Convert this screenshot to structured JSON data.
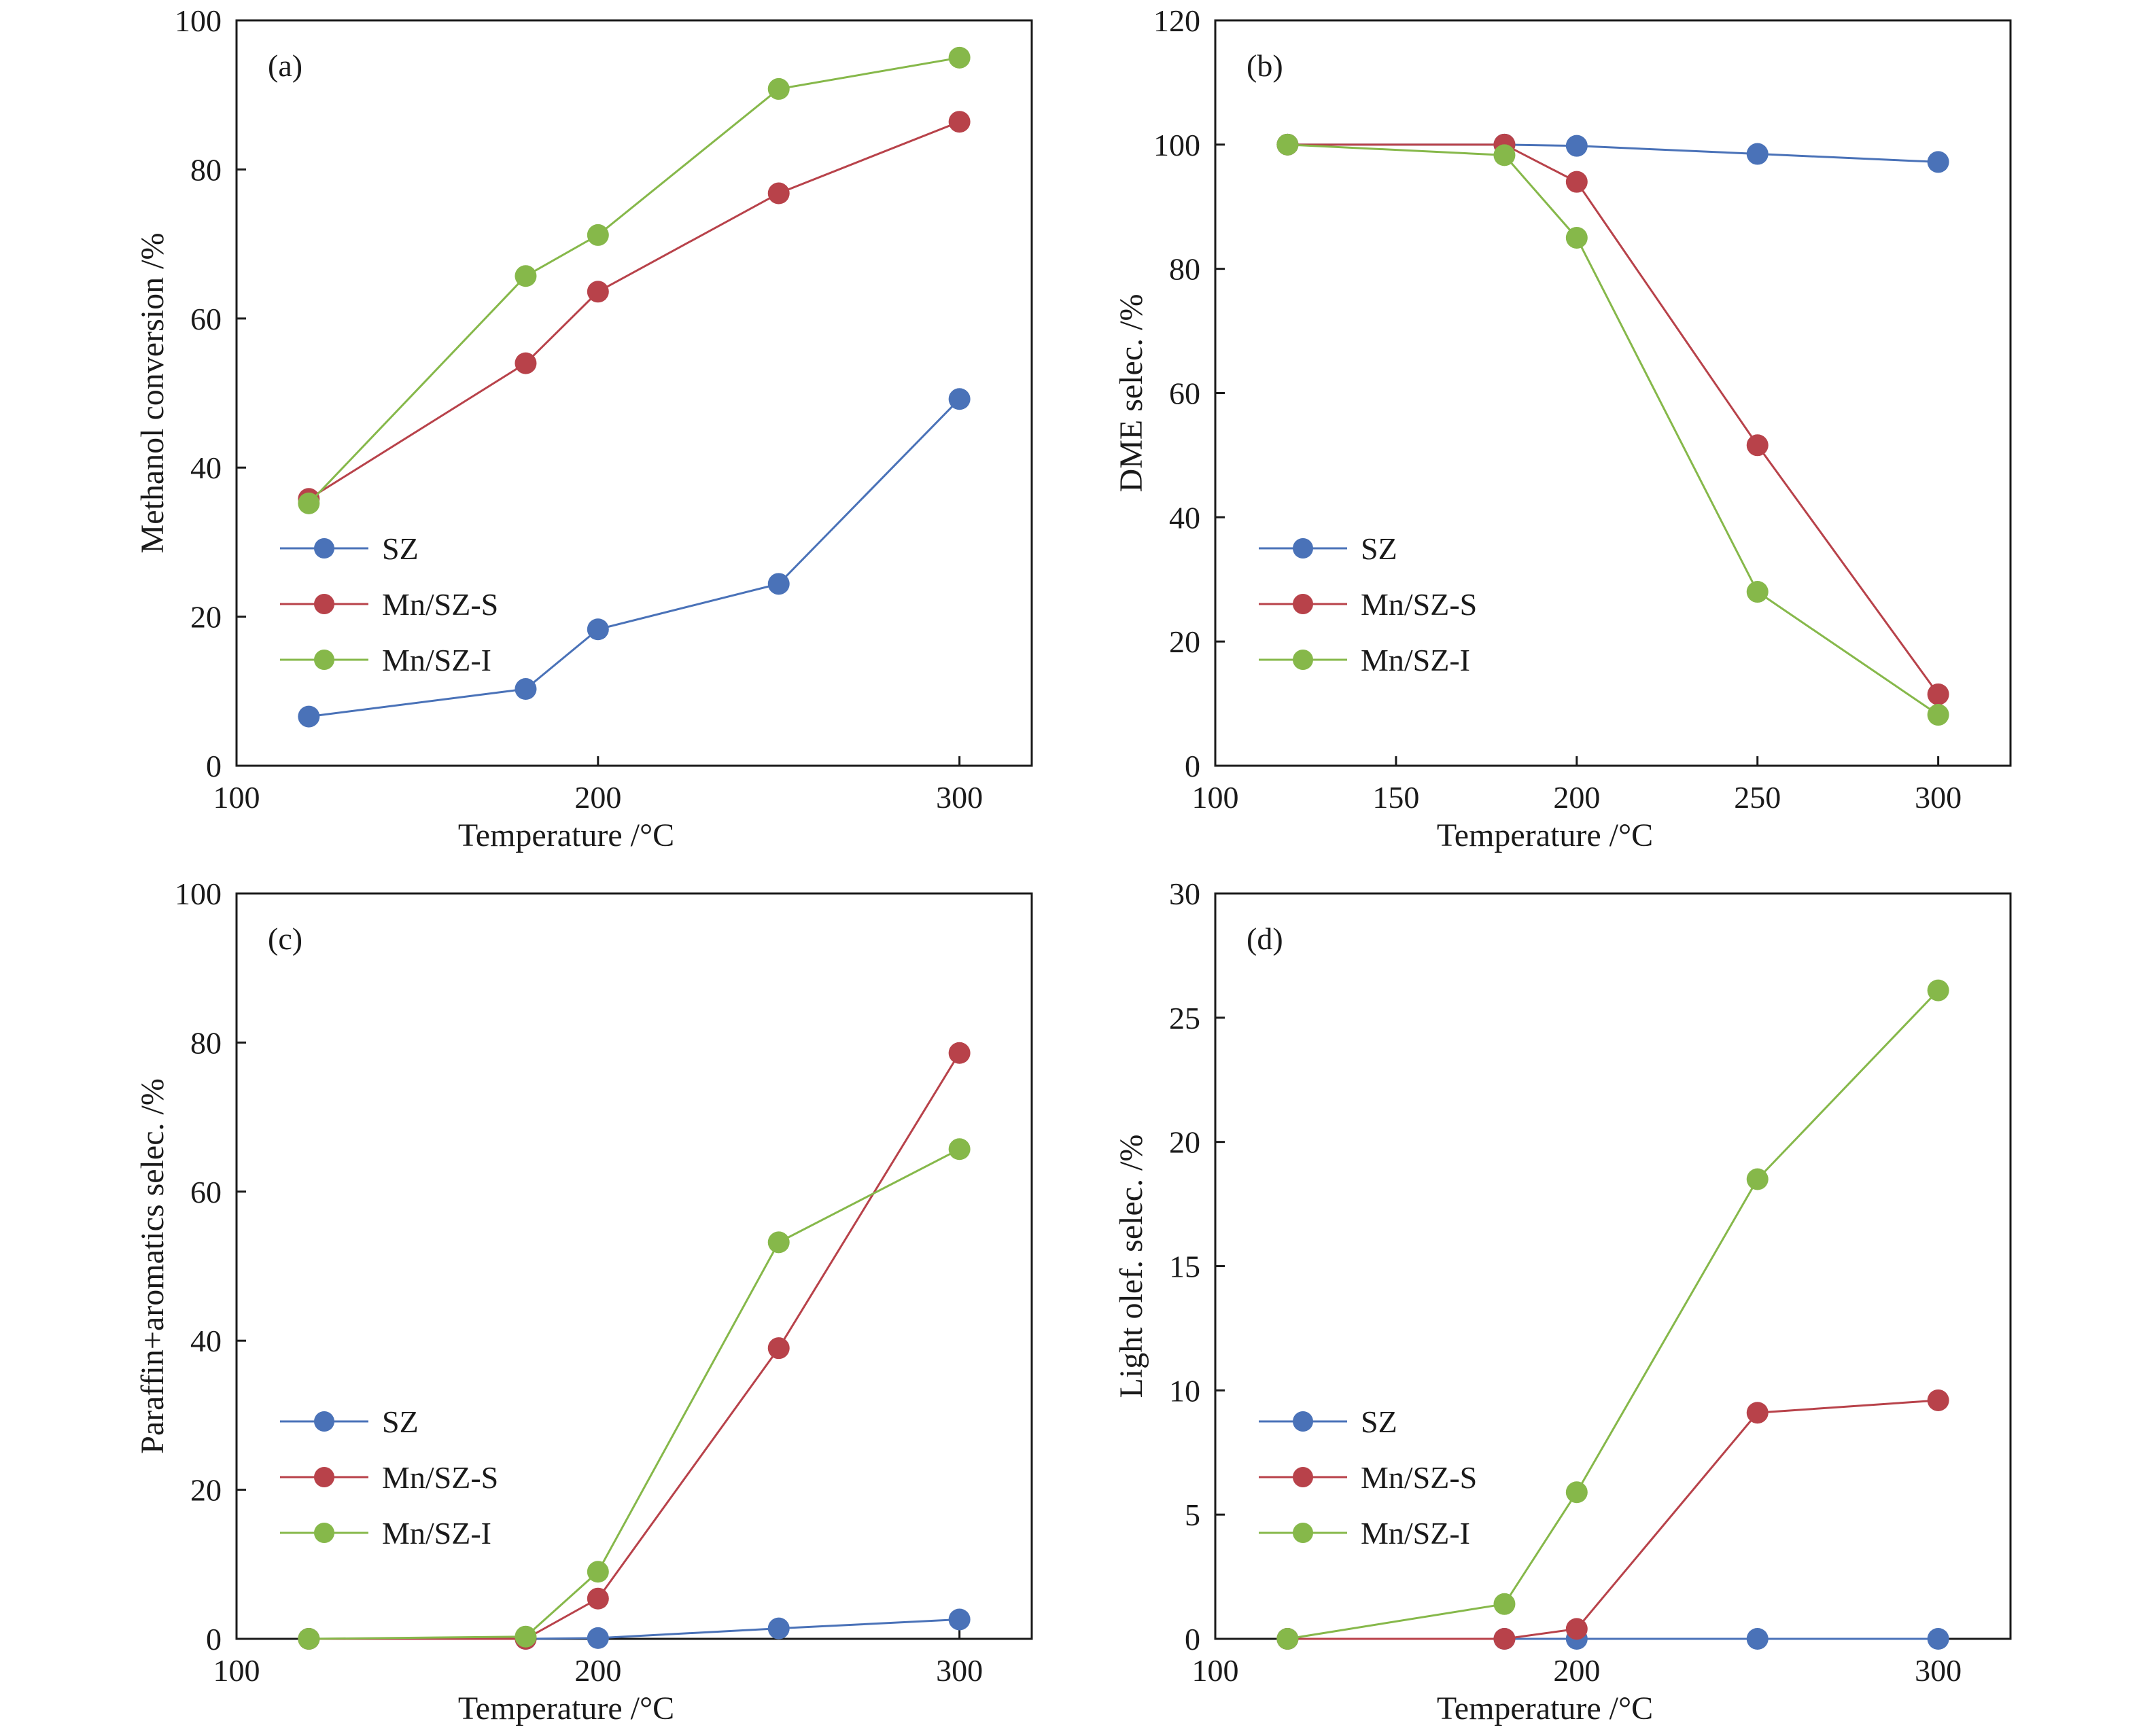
{
  "colors": {
    "SZ": "#4a72b8",
    "Mn/SZ-S": "#b8424a",
    "Mn/SZ-I": "#86b84a"
  },
  "chart_data": [
    {
      "type": "line",
      "panel_label": "(a)",
      "xlabel": "Temperature /°C",
      "ylabel": "Methanol conversion /%",
      "xlim": [
        100,
        320
      ],
      "ylim": [
        0,
        100
      ],
      "xticks": [
        100,
        200,
        300
      ],
      "yticks": [
        0,
        20,
        40,
        60,
        80,
        100
      ],
      "legend": {
        "position": "lower-left"
      },
      "series": [
        {
          "name": "SZ",
          "x": [
            120,
            180,
            200,
            250,
            300
          ],
          "values": [
            6.6,
            10.3,
            18.3,
            24.4,
            49.2
          ]
        },
        {
          "name": "Mn/SZ-S",
          "x": [
            120,
            180,
            200,
            250,
            300
          ],
          "values": [
            35.8,
            54.0,
            63.6,
            76.8,
            86.4
          ]
        },
        {
          "name": "Mn/SZ-I",
          "x": [
            120,
            180,
            200,
            250,
            300
          ],
          "values": [
            35.2,
            65.7,
            71.2,
            90.8,
            95.0
          ]
        }
      ]
    },
    {
      "type": "line",
      "panel_label": "(b)",
      "xlabel": "Temperature /°C",
      "ylabel": "DME selec. /%",
      "xlim": [
        100,
        320
      ],
      "ylim": [
        0,
        120
      ],
      "xticks": [
        100,
        150,
        200,
        250,
        300
      ],
      "yticks": [
        0,
        20,
        40,
        60,
        80,
        100,
        120
      ],
      "legend": {
        "position": "lower-left"
      },
      "series": [
        {
          "name": "SZ",
          "x": [
            120,
            180,
            200,
            250,
            300
          ],
          "values": [
            100.0,
            100.0,
            99.8,
            98.5,
            97.2
          ]
        },
        {
          "name": "Mn/SZ-S",
          "x": [
            120,
            180,
            200,
            250,
            300
          ],
          "values": [
            100.0,
            100.0,
            94.0,
            51.6,
            11.5
          ]
        },
        {
          "name": "Mn/SZ-I",
          "x": [
            120,
            180,
            200,
            250,
            300
          ],
          "values": [
            100.0,
            98.3,
            85.0,
            28.0,
            8.2
          ]
        }
      ]
    },
    {
      "type": "line",
      "panel_label": "(c)",
      "xlabel": "Temperature /°C",
      "ylabel": "Paraffin+aromatics selec. /%",
      "xlim": [
        100,
        320
      ],
      "ylim": [
        0,
        100
      ],
      "xticks": [
        100,
        200,
        300
      ],
      "yticks": [
        0,
        20,
        40,
        60,
        80,
        100
      ],
      "legend": {
        "position": "lower-left"
      },
      "series": [
        {
          "name": "SZ",
          "x": [
            120,
            180,
            200,
            250,
            300
          ],
          "values": [
            0.0,
            0.0,
            0.1,
            1.4,
            2.6
          ]
        },
        {
          "name": "Mn/SZ-S",
          "x": [
            120,
            180,
            200,
            250,
            300
          ],
          "values": [
            0.0,
            0.0,
            5.4,
            39.0,
            78.6
          ]
        },
        {
          "name": "Mn/SZ-I",
          "x": [
            120,
            180,
            200,
            250,
            300
          ],
          "values": [
            0.0,
            0.3,
            9.0,
            53.2,
            65.7
          ]
        }
      ]
    },
    {
      "type": "line",
      "panel_label": "(d)",
      "xlabel": "Temperature /°C",
      "ylabel": "Light olef. selec. /%",
      "xlim": [
        100,
        320
      ],
      "ylim": [
        0,
        30
      ],
      "xticks": [
        100,
        200,
        300
      ],
      "yticks": [
        0,
        5,
        10,
        15,
        20,
        25,
        30
      ],
      "legend": {
        "position": "lower-left"
      },
      "series": [
        {
          "name": "SZ",
          "x": [
            120,
            180,
            200,
            250,
            300
          ],
          "values": [
            0.0,
            0.0,
            0.0,
            0.0,
            0.0
          ]
        },
        {
          "name": "Mn/SZ-S",
          "x": [
            120,
            180,
            200,
            250,
            300
          ],
          "values": [
            0.0,
            0.0,
            0.4,
            9.1,
            9.6
          ]
        },
        {
          "name": "Mn/SZ-I",
          "x": [
            120,
            180,
            200,
            250,
            300
          ],
          "values": [
            0.0,
            1.4,
            5.9,
            18.5,
            26.1
          ]
        }
      ]
    }
  ]
}
